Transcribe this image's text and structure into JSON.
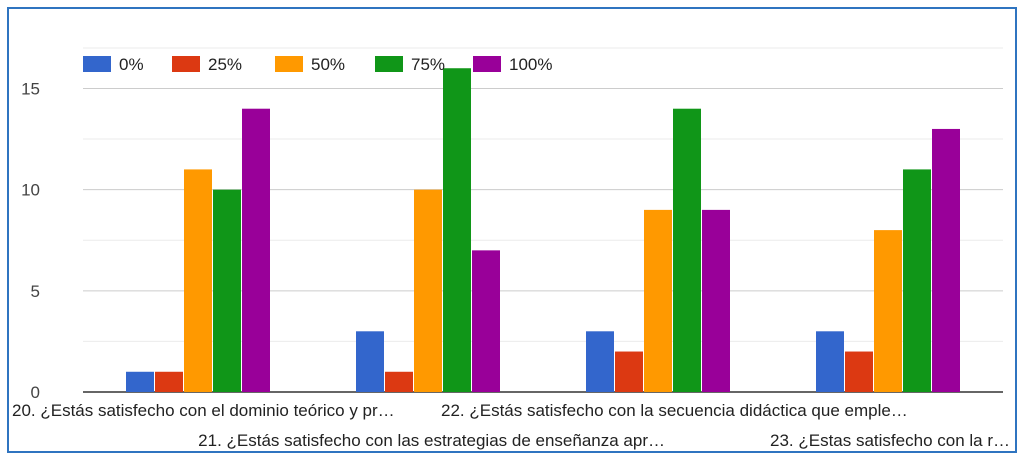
{
  "chart_data": {
    "type": "bar",
    "categories": [
      "20. ¿Estás satisfecho con el dominio teórico y pr…",
      "21. ¿Estás satisfecho con las estrategias de enseñanza apr…",
      "22. ¿Estás satisfecho con la secuencia didáctica que emple…",
      "23. ¿Estas satisfecho con la r…"
    ],
    "series": [
      {
        "name": "0%",
        "color": "#3366cc",
        "values": [
          1,
          3,
          3,
          3
        ]
      },
      {
        "name": "25%",
        "color": "#dc3912",
        "values": [
          1,
          1,
          2,
          2
        ]
      },
      {
        "name": "50%",
        "color": "#ff9900",
        "values": [
          11,
          10,
          9,
          8
        ]
      },
      {
        "name": "75%",
        "color": "#109618",
        "values": [
          10,
          16,
          14,
          11
        ]
      },
      {
        "name": "100%",
        "color": "#990099",
        "values": [
          14,
          7,
          9,
          13
        ]
      }
    ],
    "yticks": [
      0,
      5,
      10,
      15
    ],
    "ylim": [
      0,
      17
    ],
    "grid": true,
    "legend_position": "top-left"
  }
}
